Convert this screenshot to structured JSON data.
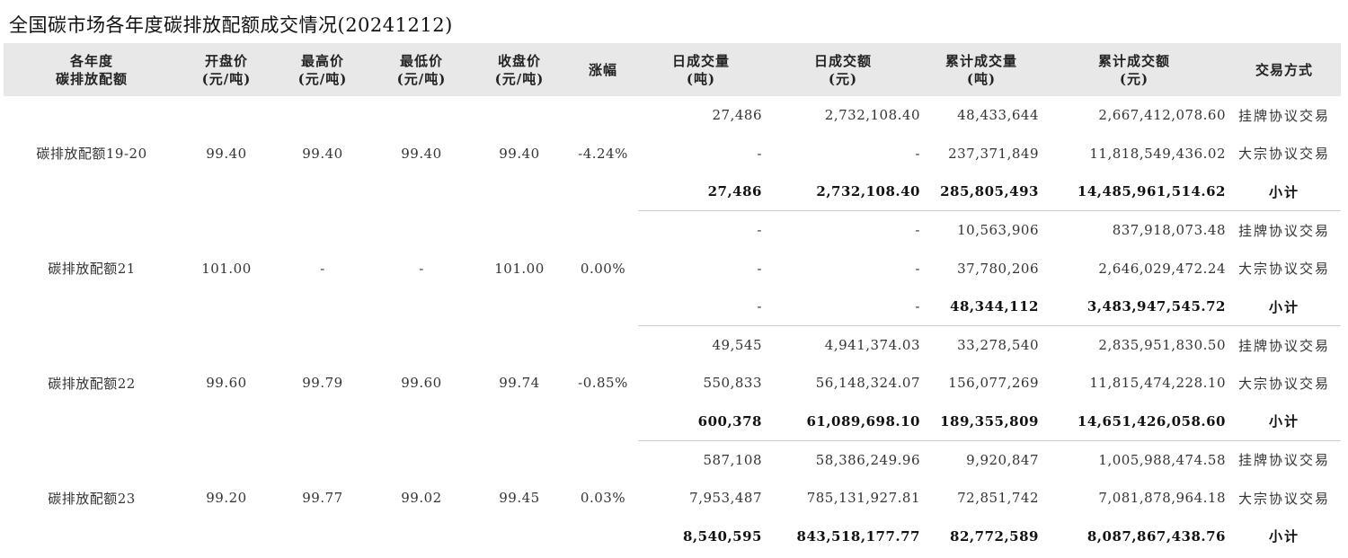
{
  "title": "全国碳市场各年度碳排放配额成交情况(20241212)",
  "headers": [
    [
      "各年度",
      "碳排放配额"
    ],
    [
      "开盘价",
      "(元/吨)"
    ],
    [
      "最高价",
      "(元/吨)"
    ],
    [
      "最低价",
      "(元/吨)"
    ],
    [
      "收盘价",
      "(元/吨)"
    ],
    [
      "涨幅",
      ""
    ],
    [
      "日成交量",
      "(吨)"
    ],
    [
      "日成交额",
      "(元)"
    ],
    [
      "累计成交量",
      "(吨)"
    ],
    [
      "累计成交额",
      "(元)"
    ],
    [
      "交易方式",
      ""
    ]
  ],
  "groups": [
    {
      "name": "碳排放配额19-20",
      "open": "99.40",
      "high": "99.40",
      "low": "99.40",
      "close": "99.40",
      "change": "-4.24%",
      "rows": [
        {
          "vol": "27,486",
          "amt": "2,732,108.40",
          "cum_vol": "48,433,644",
          "cum_amt": "2,667,412,078.60",
          "method": "挂牌协议交易"
        },
        {
          "vol": "-",
          "amt": "-",
          "cum_vol": "237,371,849",
          "cum_amt": "11,818,549,436.02",
          "method": "大宗协议交易"
        },
        {
          "vol": "27,486",
          "amt": "2,732,108.40",
          "cum_vol": "285,805,493",
          "cum_amt": "14,485,961,514.62",
          "method": "小计"
        }
      ]
    },
    {
      "name": "碳排放配额21",
      "open": "101.00",
      "high": "-",
      "low": "-",
      "close": "101.00",
      "change": "0.00%",
      "rows": [
        {
          "vol": "-",
          "amt": "-",
          "cum_vol": "10,563,906",
          "cum_amt": "837,918,073.48",
          "method": "挂牌协议交易"
        },
        {
          "vol": "-",
          "amt": "-",
          "cum_vol": "37,780,206",
          "cum_amt": "2,646,029,472.24",
          "method": "大宗协议交易"
        },
        {
          "vol": "-",
          "amt": "-",
          "cum_vol": "48,344,112",
          "cum_amt": "3,483,947,545.72",
          "method": "小计"
        }
      ]
    },
    {
      "name": "碳排放配额22",
      "open": "99.60",
      "high": "99.79",
      "low": "99.60",
      "close": "99.74",
      "change": "-0.85%",
      "rows": [
        {
          "vol": "49,545",
          "amt": "4,941,374.03",
          "cum_vol": "33,278,540",
          "cum_amt": "2,835,951,830.50",
          "method": "挂牌协议交易"
        },
        {
          "vol": "550,833",
          "amt": "56,148,324.07",
          "cum_vol": "156,077,269",
          "cum_amt": "11,815,474,228.10",
          "method": "大宗协议交易"
        },
        {
          "vol": "600,378",
          "amt": "61,089,698.10",
          "cum_vol": "189,355,809",
          "cum_amt": "14,651,426,058.60",
          "method": "小计"
        }
      ]
    },
    {
      "name": "碳排放配额23",
      "open": "99.20",
      "high": "99.77",
      "low": "99.02",
      "close": "99.45",
      "change": "0.03%",
      "rows": [
        {
          "vol": "587,108",
          "amt": "58,386,249.96",
          "cum_vol": "9,920,847",
          "cum_amt": "1,005,988,474.58",
          "method": "挂牌协议交易"
        },
        {
          "vol": "7,953,487",
          "amt": "785,131,927.81",
          "cum_vol": "72,851,742",
          "cum_amt": "7,081,878,964.18",
          "method": "大宗协议交易"
        },
        {
          "vol": "8,540,595",
          "amt": "843,518,177.77",
          "cum_vol": "82,772,589",
          "cum_amt": "8,087,867,438.76",
          "method": "小计"
        }
      ]
    }
  ]
}
